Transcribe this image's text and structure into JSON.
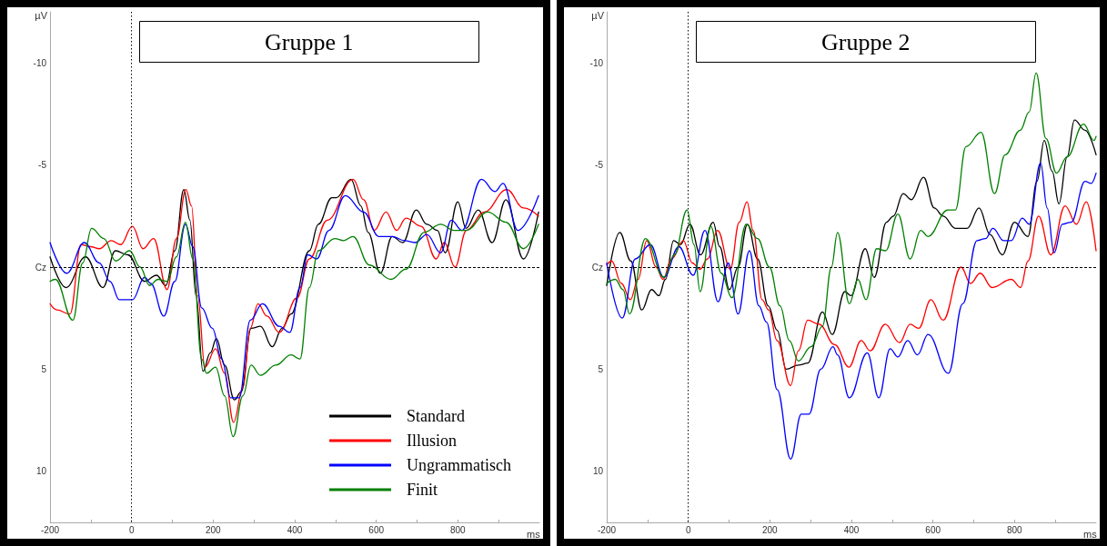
{
  "chart_data": [
    {
      "type": "line",
      "title": "Gruppe 1",
      "xlabel": "ms",
      "ylabel": "µV",
      "xlim": [
        -200,
        1000
      ],
      "xticks": [
        -200,
        {
          "value": -100,
          "label": null
        },
        0,
        {
          "value": 100,
          "label": null
        },
        200,
        {
          "value": 300,
          "label": null
        },
        400,
        {
          "value": 500,
          "label": null
        },
        600,
        {
          "value": 700,
          "label": null
        },
        800,
        {
          "value": 900,
          "label": null
        }
      ],
      "ylim": [
        12.5,
        -12.5
      ],
      "yticks": [
        -10,
        -5,
        {
          "value": 0,
          "label": "Cz"
        },
        5,
        10
      ],
      "grid": false,
      "legend": "bottom right",
      "marker": "none",
      "line_style": "solid",
      "ref_lines": [
        {
          "axis": "x",
          "value": 0,
          "label": null,
          "color": "#000000",
          "line_style": "dotted"
        },
        {
          "axis": "y",
          "value": 0,
          "label": null,
          "color": "#000000",
          "line_style": "dashed"
        }
      ],
      "series": [
        {
          "name": "Standard",
          "color": "#000000",
          "x": [
            -200,
            -161,
            -113,
            -70,
            -40,
            -9,
            32,
            61,
            84,
            106,
            128,
            143,
            158,
            175,
            193,
            208,
            228,
            252,
            269,
            293,
            316,
            345,
            369,
            391,
            436,
            458,
            491,
            502,
            538,
            562,
            580,
            610,
            639,
            665,
            698,
            724,
            750,
            769,
            800,
            820,
            850,
            884,
            918,
            961,
            998
          ],
          "values": [
            -0.5,
            1.0,
            -0.5,
            1.0,
            -0.8,
            -0.6,
            0.7,
            0.4,
            0.9,
            -0.8,
            -3.8,
            -2.3,
            1.4,
            5.1,
            4.2,
            3.5,
            4.8,
            6.5,
            6.1,
            3.0,
            2.9,
            3.9,
            3.0,
            2.3,
            -0.8,
            -2.1,
            -3.4,
            -3.4,
            -4.3,
            -3.0,
            -1.7,
            0.3,
            -1.5,
            -1.2,
            -2.8,
            -2.1,
            -1.8,
            -0.7,
            -3.2,
            -1.9,
            -2.8,
            -1.2,
            -3.3,
            -0.4,
            -2.7
          ]
        },
        {
          "name": "Illusion",
          "color": "#ff0000",
          "x": [
            -200,
            -183,
            -151,
            -124,
            -101,
            -79,
            -50,
            -27,
            2,
            28,
            54,
            87,
            110,
            133,
            147,
            162,
            180,
            206,
            228,
            250,
            273,
            291,
            310,
            332,
            362,
            406,
            436,
            480,
            543,
            569,
            595,
            624,
            650,
            673,
            710,
            747,
            767,
            793,
            821,
            865,
            920,
            961,
            998
          ],
          "values": [
            1.8,
            2.1,
            2.3,
            -1.1,
            -1.0,
            -0.9,
            -1.3,
            -1.1,
            -2.0,
            -0.9,
            -1.4,
            1.1,
            -1.4,
            -3.8,
            -3.0,
            1.4,
            4.9,
            4.0,
            5.2,
            7.6,
            5.9,
            3.0,
            1.8,
            2.4,
            3.2,
            1.5,
            -0.4,
            -2.3,
            -4.3,
            -3.3,
            -1.8,
            -2.7,
            -1.8,
            -2.4,
            -2.0,
            -0.4,
            -1.2,
            0.0,
            -1.8,
            -2.7,
            -3.8,
            -2.9,
            -2.5
          ]
        },
        {
          "name": "Ungrammatisch",
          "color": "#0000ff",
          "x": [
            -200,
            -159,
            -116,
            -79,
            -53,
            -30,
            2,
            32,
            47,
            79,
            106,
            132,
            150,
            172,
            198,
            221,
            243,
            264,
            291,
            321,
            362,
            388,
            413,
            432,
            454,
            484,
            524,
            569,
            606,
            639,
            669,
            695,
            724,
            758,
            784,
            810,
            858,
            891,
            911,
            947,
            998
          ],
          "values": [
            -1.2,
            0.3,
            -1.2,
            -0.2,
            0.7,
            1.6,
            1.6,
            0.5,
            0.8,
            2.4,
            0.7,
            -2.1,
            -1.0,
            2.0,
            3.0,
            4.5,
            6.4,
            6.4,
            2.6,
            1.8,
            2.9,
            3.2,
            1.0,
            -0.6,
            -0.4,
            -1.8,
            -3.5,
            -2.7,
            -1.5,
            -1.5,
            -1.3,
            -1.2,
            -1.6,
            -0.7,
            -2.3,
            -1.8,
            -4.3,
            -3.7,
            -4.1,
            -1.8,
            -3.5
          ]
        },
        {
          "name": "Finit",
          "color": "#008000",
          "x": [
            -200,
            -187,
            -144,
            -120,
            -98,
            -68,
            -39,
            -5,
            21,
            44,
            65,
            87,
            110,
            132,
            150,
            172,
            184,
            206,
            228,
            249,
            273,
            293,
            316,
            354,
            391,
            413,
            436,
            458,
            498,
            520,
            543,
            583,
            636,
            673,
            717,
            758,
            791,
            821,
            873,
            918,
            961,
            998
          ],
          "values": [
            0.7,
            0.6,
            2.6,
            -0.2,
            -1.9,
            -1.4,
            -0.3,
            -0.8,
            0.0,
            0.9,
            0.6,
            0.7,
            -0.5,
            -2.2,
            -0.4,
            4.5,
            5.2,
            4.9,
            6.3,
            8.3,
            6.3,
            4.8,
            5.3,
            4.8,
            4.3,
            4.5,
            1.0,
            -0.8,
            -1.4,
            -1.3,
            -1.5,
            -0.1,
            0.6,
            0.1,
            -1.7,
            -2.1,
            -1.8,
            -1.8,
            -2.7,
            -2.2,
            -0.9,
            -2.1
          ]
        }
      ]
    },
    {
      "type": "line",
      "title": "Gruppe 2",
      "xlabel": "ms",
      "ylabel": "µV",
      "xlim": [
        -200,
        1000
      ],
      "xticks": [
        -200,
        {
          "value": -100,
          "label": null
        },
        0,
        {
          "value": 100,
          "label": null
        },
        200,
        {
          "value": 300,
          "label": null
        },
        400,
        {
          "value": 500,
          "label": null
        },
        600,
        {
          "value": 700,
          "label": null
        },
        800,
        {
          "value": 900,
          "label": null
        }
      ],
      "ylim": [
        12.5,
        -12.5
      ],
      "yticks": [
        -10,
        -5,
        {
          "value": 0,
          "label": "Cz"
        },
        5,
        10
      ],
      "grid": false,
      "legend": false,
      "marker": "none",
      "line_style": "solid",
      "ref_lines": [
        {
          "axis": "x",
          "value": 0,
          "label": null,
          "color": "#000000",
          "line_style": "dotted"
        },
        {
          "axis": "y",
          "value": 0,
          "label": null,
          "color": "#000000",
          "line_style": "dashed"
        }
      ],
      "series": [
        {
          "color": "#000000",
          "x": [
            -200,
            -168,
            -141,
            -114,
            -90,
            -72,
            -56,
            -36,
            -19,
            4,
            30,
            61,
            77,
            101,
            122,
            145,
            170,
            196,
            218,
            240,
            270,
            293,
            329,
            353,
            384,
            399,
            434,
            456,
            486,
            503,
            527,
            547,
            577,
            603,
            625,
            655,
            684,
            713,
            740,
            770,
            800,
            833,
            855,
            873,
            892,
            909,
            929,
            947,
            973,
            1000
          ],
          "values": [
            0.9,
            -1.7,
            -0.3,
            2.1,
            1.1,
            1.4,
            0.6,
            -1.3,
            -1.1,
            -2.1,
            -0.6,
            -2.2,
            -1.0,
            1.1,
            0.0,
            -2.1,
            -0.4,
            1.9,
            3.1,
            5.0,
            4.8,
            4.7,
            2.2,
            3.3,
            1.2,
            1.4,
            -0.9,
            0.5,
            -2.2,
            -2.5,
            -3.6,
            -3.3,
            -4.4,
            -2.9,
            -2.5,
            -1.9,
            -1.9,
            -2.9,
            -1.6,
            -0.6,
            -2.2,
            -1.5,
            -4.2,
            -6.2,
            -4.7,
            -3.1,
            -5.4,
            -7.2,
            -6.7,
            -5.5
          ]
        },
        {
          "color": "#ff0000",
          "x": [
            -200,
            -188,
            -164,
            -142,
            -123,
            -102,
            -79,
            -62,
            -41,
            -12,
            10,
            29,
            47,
            72,
            103,
            125,
            144,
            159,
            181,
            197,
            218,
            251,
            270,
            293,
            321,
            359,
            394,
            424,
            446,
            483,
            518,
            544,
            565,
            595,
            625,
            669,
            692,
            716,
            745,
            792,
            815,
            833,
            859,
            889,
            924,
            952,
            976,
            1000
          ],
          "values": [
            -0.1,
            -0.3,
            0.8,
            1.6,
            0.6,
            -1.3,
            0.0,
            0.6,
            -0.4,
            -1.3,
            -0.2,
            0.1,
            -0.4,
            -1.8,
            0.1,
            -2.2,
            -3.2,
            -1.8,
            1.6,
            2.1,
            3.6,
            5.8,
            4.1,
            2.6,
            2.8,
            3.8,
            4.9,
            3.6,
            4.1,
            2.8,
            3.7,
            2.8,
            3.0,
            1.6,
            2.6,
            0.0,
            0.8,
            0.3,
            1.0,
            0.6,
            1.0,
            -0.3,
            -2.5,
            -0.6,
            -3.0,
            -2.1,
            -3.2,
            -0.8
          ]
        },
        {
          "color": "#0000ff",
          "x": [
            -200,
            -162,
            -130,
            -93,
            -60,
            -23,
            12,
            41,
            73,
            98,
            122,
            150,
            173,
            192,
            218,
            251,
            277,
            296,
            325,
            355,
            366,
            395,
            439,
            467,
            495,
            514,
            538,
            562,
            588,
            638,
            673,
            708,
            729,
            747,
            773,
            792,
            819,
            836,
            864,
            880,
            897,
            917,
            939,
            973,
            988,
            1000
          ],
          "values": [
            -0.2,
            2.5,
            -0.4,
            -1.1,
            0.5,
            -1.0,
            0.4,
            -1.8,
            1.7,
            -0.2,
            2.3,
            -0.8,
            1.9,
            2.7,
            6.0,
            9.4,
            7.2,
            7.2,
            5.0,
            3.9,
            4.3,
            6.4,
            4.2,
            6.4,
            4.0,
            4.4,
            3.6,
            4.3,
            3.3,
            5.2,
            1.8,
            -1.3,
            -1.4,
            -1.9,
            -1.3,
            -1.3,
            -2.4,
            -2.1,
            -5.1,
            -2.9,
            -0.7,
            -2.1,
            -2.2,
            -4.2,
            -4.1,
            -4.6
          ]
        },
        {
          "color": "#008000",
          "x": [
            -200,
            -179,
            -160,
            -144,
            -105,
            -60,
            -34,
            -3,
            14,
            29,
            55,
            81,
            107,
            142,
            170,
            199,
            225,
            248,
            270,
            301,
            329,
            351,
            366,
            395,
            416,
            436,
            462,
            484,
            514,
            544,
            570,
            588,
            636,
            655,
            681,
            718,
            751,
            777,
            814,
            836,
            853,
            877,
            903,
            929,
            969,
            995,
            1000
          ],
          "values": [
            0.8,
            0.6,
            1.1,
            2.3,
            -1.4,
            0.5,
            -0.6,
            -2.8,
            -1.1,
            1.2,
            -2.0,
            0.3,
            1.5,
            -2.1,
            -1.4,
            0.0,
            1.9,
            3.6,
            4.6,
            3.9,
            2.9,
            0.0,
            -1.7,
            1.8,
            0.6,
            1.6,
            -0.9,
            -0.8,
            -2.6,
            -0.4,
            -1.8,
            -1.5,
            -2.8,
            -2.8,
            -5.9,
            -6.6,
            -3.6,
            -5.5,
            -6.7,
            -7.6,
            -9.5,
            -6.3,
            -4.6,
            -5.4,
            -7.0,
            -6.2,
            -6.4
          ]
        }
      ]
    }
  ]
}
